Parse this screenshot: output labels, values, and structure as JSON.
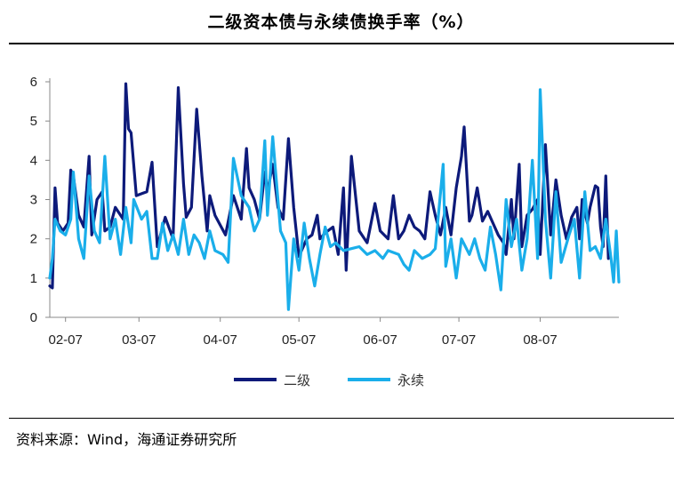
{
  "title": "二级资本债与永续债换手率（%）",
  "source": "资料来源：Wind，海通证券研究所",
  "chart_data": {
    "type": "line",
    "title": "二级资本债与永续债换手率（%）",
    "xlabel": "",
    "ylabel": "",
    "ylim": [
      0,
      6
    ],
    "yticks": [
      "0",
      "1",
      "2",
      "3",
      "4",
      "5",
      "6"
    ],
    "xticks": [
      "02-07",
      "03-07",
      "04-07",
      "05-07",
      "06-07",
      "07-07",
      "08-07"
    ],
    "xrange": [
      "2023-02-01",
      "2023-08-31"
    ],
    "grid": false,
    "legend_position": "bottom",
    "series": [
      {
        "name": "二级",
        "color": "#0d1a7a",
        "points": [
          [
            "2023-02-01",
            0.8
          ],
          [
            "2023-02-02",
            0.75
          ],
          [
            "2023-02-03",
            3.3
          ],
          [
            "2023-02-04",
            2.4
          ],
          [
            "2023-02-06",
            2.2
          ],
          [
            "2023-02-08",
            2.4
          ],
          [
            "2023-02-09",
            3.75
          ],
          [
            "2023-02-10",
            3.6
          ],
          [
            "2023-02-12",
            2.6
          ],
          [
            "2023-02-14",
            2.3
          ],
          [
            "2023-02-16",
            4.1
          ],
          [
            "2023-02-17",
            2.1
          ],
          [
            "2023-02-19",
            3.0
          ],
          [
            "2023-02-21",
            3.2
          ],
          [
            "2023-02-22",
            2.2
          ],
          [
            "2023-02-24",
            2.3
          ],
          [
            "2023-02-26",
            2.8
          ],
          [
            "2023-03-01",
            2.5
          ],
          [
            "2023-03-02",
            5.95
          ],
          [
            "2023-03-03",
            4.8
          ],
          [
            "2023-03-04",
            4.7
          ],
          [
            "2023-03-06",
            3.1
          ],
          [
            "2023-03-08",
            3.15
          ],
          [
            "2023-03-10",
            3.2
          ],
          [
            "2023-03-12",
            3.95
          ],
          [
            "2023-03-14",
            1.8
          ],
          [
            "2023-03-17",
            2.55
          ],
          [
            "2023-03-20",
            2.0
          ],
          [
            "2023-03-22",
            5.85
          ],
          [
            "2023-03-24",
            3.4
          ],
          [
            "2023-03-25",
            2.55
          ],
          [
            "2023-03-27",
            2.8
          ],
          [
            "2023-03-29",
            5.3
          ],
          [
            "2023-03-31",
            3.6
          ],
          [
            "2023-04-02",
            2.2
          ],
          [
            "2023-04-03",
            3.1
          ],
          [
            "2023-04-05",
            2.6
          ],
          [
            "2023-04-09",
            2.1
          ],
          [
            "2023-04-12",
            3.1
          ],
          [
            "2023-04-15",
            2.5
          ],
          [
            "2023-04-17",
            4.3
          ],
          [
            "2023-04-18",
            3.3
          ],
          [
            "2023-04-20",
            3.0
          ],
          [
            "2023-04-22",
            2.5
          ],
          [
            "2023-04-24",
            3.7
          ],
          [
            "2023-04-25",
            3.2
          ],
          [
            "2023-04-27",
            3.9
          ],
          [
            "2023-04-29",
            2.8
          ],
          [
            "2023-05-01",
            2.5
          ],
          [
            "2023-05-03",
            4.55
          ],
          [
            "2023-05-05",
            2.8
          ],
          [
            "2023-05-07",
            1.55
          ],
          [
            "2023-05-10",
            2.0
          ],
          [
            "2023-05-12",
            2.1
          ],
          [
            "2023-05-14",
            2.6
          ],
          [
            "2023-05-15",
            2.0
          ],
          [
            "2023-05-17",
            2.15
          ],
          [
            "2023-05-20",
            2.3
          ],
          [
            "2023-05-22",
            1.6
          ],
          [
            "2023-05-24",
            3.3
          ],
          [
            "2023-05-25",
            1.2
          ],
          [
            "2023-05-27",
            4.1
          ],
          [
            "2023-05-30",
            2.2
          ],
          [
            "2023-06-02",
            1.9
          ],
          [
            "2023-06-05",
            2.9
          ],
          [
            "2023-06-07",
            2.2
          ],
          [
            "2023-06-10",
            2.0
          ],
          [
            "2023-06-12",
            3.1
          ],
          [
            "2023-06-14",
            2.0
          ],
          [
            "2023-06-16",
            2.2
          ],
          [
            "2023-06-18",
            2.6
          ],
          [
            "2023-06-20",
            2.3
          ],
          [
            "2023-06-22",
            2.2
          ],
          [
            "2023-06-24",
            2.0
          ],
          [
            "2023-06-26",
            3.2
          ],
          [
            "2023-06-28",
            2.6
          ],
          [
            "2023-06-30",
            2.1
          ],
          [
            "2023-07-02",
            2.8
          ],
          [
            "2023-07-04",
            2.1
          ],
          [
            "2023-07-06",
            3.3
          ],
          [
            "2023-07-08",
            4.1
          ],
          [
            "2023-07-09",
            4.85
          ],
          [
            "2023-07-11",
            2.45
          ],
          [
            "2023-07-12",
            2.6
          ],
          [
            "2023-07-14",
            3.3
          ],
          [
            "2023-07-16",
            2.45
          ],
          [
            "2023-07-18",
            2.7
          ],
          [
            "2023-07-20",
            2.4
          ],
          [
            "2023-07-22",
            2.1
          ],
          [
            "2023-07-24",
            1.9
          ],
          [
            "2023-07-25",
            1.6
          ],
          [
            "2023-07-27",
            3.0
          ],
          [
            "2023-07-28",
            2.0
          ],
          [
            "2023-07-30",
            3.9
          ],
          [
            "2023-07-31",
            1.8
          ],
          [
            "2023-08-02",
            2.6
          ],
          [
            "2023-08-04",
            2.75
          ],
          [
            "2023-08-06",
            3.0
          ],
          [
            "2023-08-07",
            1.6
          ],
          [
            "2023-08-09",
            4.4
          ],
          [
            "2023-08-11",
            2.1
          ],
          [
            "2023-08-13",
            3.5
          ],
          [
            "2023-08-15",
            2.6
          ],
          [
            "2023-08-17",
            2.0
          ],
          [
            "2023-08-19",
            2.55
          ],
          [
            "2023-08-21",
            2.8
          ],
          [
            "2023-08-22",
            2.0
          ],
          [
            "2023-08-23",
            3.0
          ],
          [
            "2023-08-25",
            2.4
          ],
          [
            "2023-08-26",
            2.8
          ],
          [
            "2023-08-28",
            3.35
          ],
          [
            "2023-08-29",
            3.3
          ],
          [
            "2023-08-30",
            2.3
          ],
          [
            "2023-08-31",
            1.8
          ],
          [
            "2023-09-01",
            3.6
          ],
          [
            "2023-09-02",
            1.5
          ]
        ]
      },
      {
        "name": "永续",
        "color": "#1aaeea",
        "points": [
          [
            "2023-02-01",
            1.0
          ],
          [
            "2023-02-02",
            1.5
          ],
          [
            "2023-02-03",
            2.5
          ],
          [
            "2023-02-05",
            2.2
          ],
          [
            "2023-02-07",
            2.1
          ],
          [
            "2023-02-09",
            2.5
          ],
          [
            "2023-02-10",
            3.7
          ],
          [
            "2023-02-12",
            2.0
          ],
          [
            "2023-02-14",
            1.5
          ],
          [
            "2023-02-16",
            3.6
          ],
          [
            "2023-02-18",
            2.2
          ],
          [
            "2023-02-20",
            1.9
          ],
          [
            "2023-02-22",
            4.1
          ],
          [
            "2023-02-24",
            2.0
          ],
          [
            "2023-02-26",
            2.5
          ],
          [
            "2023-02-28",
            1.6
          ],
          [
            "2023-03-02",
            2.8
          ],
          [
            "2023-03-04",
            1.9
          ],
          [
            "2023-03-05",
            3.0
          ],
          [
            "2023-03-08",
            2.5
          ],
          [
            "2023-03-10",
            2.7
          ],
          [
            "2023-03-12",
            1.5
          ],
          [
            "2023-03-14",
            1.5
          ],
          [
            "2023-03-16",
            2.4
          ],
          [
            "2023-03-18",
            1.7
          ],
          [
            "2023-03-20",
            2.1
          ],
          [
            "2023-03-22",
            1.6
          ],
          [
            "2023-03-24",
            2.5
          ],
          [
            "2023-03-26",
            1.6
          ],
          [
            "2023-03-28",
            2.1
          ],
          [
            "2023-03-30",
            1.9
          ],
          [
            "2023-04-01",
            1.5
          ],
          [
            "2023-04-03",
            2.2
          ],
          [
            "2023-04-05",
            1.7
          ],
          [
            "2023-04-08",
            1.6
          ],
          [
            "2023-04-10",
            1.4
          ],
          [
            "2023-04-12",
            4.05
          ],
          [
            "2023-04-15",
            3.1
          ],
          [
            "2023-04-18",
            2.8
          ],
          [
            "2023-04-20",
            2.2
          ],
          [
            "2023-04-22",
            2.5
          ],
          [
            "2023-04-24",
            4.5
          ],
          [
            "2023-04-25",
            2.6
          ],
          [
            "2023-04-27",
            4.6
          ],
          [
            "2023-04-30",
            2.2
          ],
          [
            "2023-05-02",
            1.9
          ],
          [
            "2023-05-03",
            0.2
          ],
          [
            "2023-05-05",
            2.0
          ],
          [
            "2023-05-07",
            1.2
          ],
          [
            "2023-05-09",
            2.4
          ],
          [
            "2023-05-11",
            1.5
          ],
          [
            "2023-05-13",
            0.8
          ],
          [
            "2023-05-15",
            1.6
          ],
          [
            "2023-05-17",
            2.3
          ],
          [
            "2023-05-19",
            1.8
          ],
          [
            "2023-05-21",
            1.9
          ],
          [
            "2023-05-24",
            1.7
          ],
          [
            "2023-05-27",
            1.75
          ],
          [
            "2023-05-30",
            1.8
          ],
          [
            "2023-06-02",
            1.6
          ],
          [
            "2023-06-05",
            1.7
          ],
          [
            "2023-06-08",
            1.5
          ],
          [
            "2023-06-10",
            1.7
          ],
          [
            "2023-06-14",
            1.6
          ],
          [
            "2023-06-16",
            1.35
          ],
          [
            "2023-06-18",
            1.2
          ],
          [
            "2023-06-20",
            1.7
          ],
          [
            "2023-06-23",
            1.5
          ],
          [
            "2023-06-26",
            1.6
          ],
          [
            "2023-06-28",
            1.75
          ],
          [
            "2023-07-01",
            3.9
          ],
          [
            "2023-07-02",
            1.3
          ],
          [
            "2023-07-04",
            2.0
          ],
          [
            "2023-07-06",
            1.0
          ],
          [
            "2023-07-08",
            2.0
          ],
          [
            "2023-07-11",
            1.6
          ],
          [
            "2023-07-13",
            2.0
          ],
          [
            "2023-07-15",
            1.5
          ],
          [
            "2023-07-17",
            1.2
          ],
          [
            "2023-07-19",
            2.3
          ],
          [
            "2023-07-21",
            1.6
          ],
          [
            "2023-07-23",
            0.7
          ],
          [
            "2023-07-25",
            3.0
          ],
          [
            "2023-07-27",
            1.8
          ],
          [
            "2023-07-29",
            2.5
          ],
          [
            "2023-07-31",
            1.2
          ],
          [
            "2023-08-02",
            2.0
          ],
          [
            "2023-08-04",
            4.0
          ],
          [
            "2023-08-06",
            1.5
          ],
          [
            "2023-08-07",
            5.8
          ],
          [
            "2023-08-09",
            2.5
          ],
          [
            "2023-08-11",
            1.0
          ],
          [
            "2023-08-13",
            3.2
          ],
          [
            "2023-08-15",
            1.4
          ],
          [
            "2023-08-18",
            2.1
          ],
          [
            "2023-08-20",
            2.5
          ],
          [
            "2023-08-22",
            1.0
          ],
          [
            "2023-08-24",
            3.2
          ],
          [
            "2023-08-26",
            1.7
          ],
          [
            "2023-08-28",
            1.8
          ],
          [
            "2023-08-30",
            1.5
          ],
          [
            "2023-09-01",
            2.5
          ],
          [
            "2023-09-03",
            1.5
          ],
          [
            "2023-09-04",
            0.9
          ],
          [
            "2023-09-05",
            2.2
          ],
          [
            "2023-09-06",
            0.9
          ]
        ]
      }
    ]
  }
}
